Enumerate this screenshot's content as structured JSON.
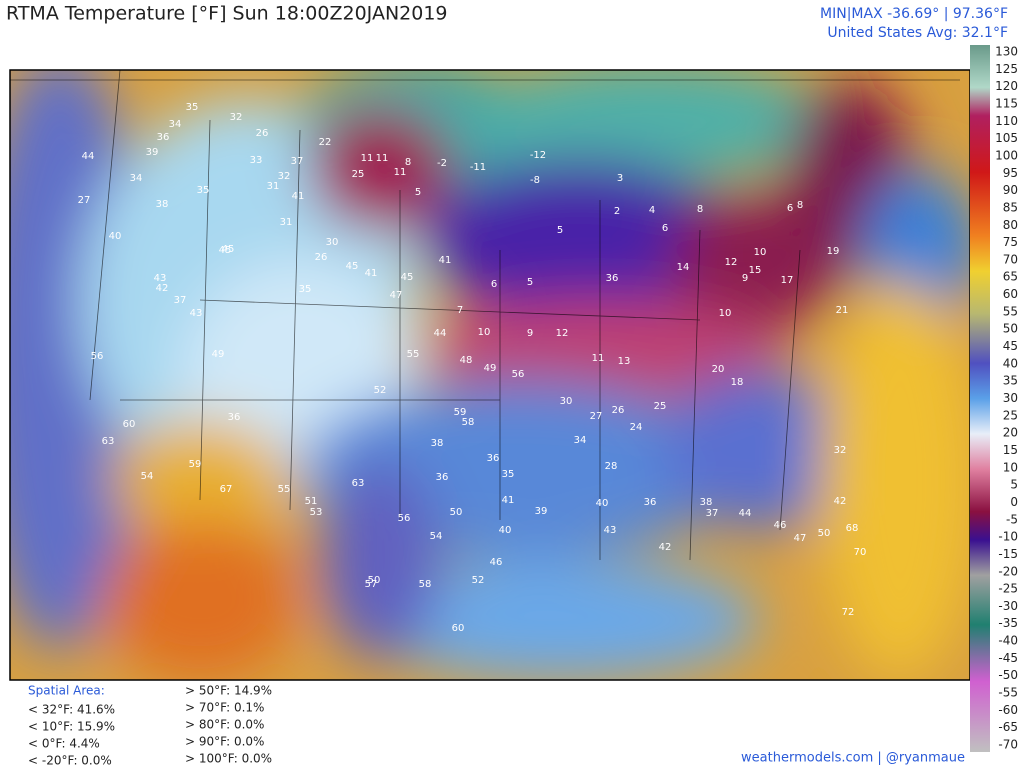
{
  "header": {
    "title": "RTMA Temperature [°F]  Sun 18:00Z20JAN2019",
    "minmax": "MIN|MAX -36.69°  |  97.36°F",
    "avg": "United States Avg: 32.1°F"
  },
  "colorbar": {
    "ticks": [
      130,
      125,
      120,
      115,
      110,
      105,
      100,
      95,
      90,
      85,
      80,
      75,
      70,
      65,
      60,
      55,
      50,
      45,
      40,
      35,
      30,
      25,
      20,
      15,
      10,
      5,
      0,
      -5,
      -10,
      -15,
      -20,
      -25,
      -30,
      -35,
      -40,
      -45,
      -50,
      -55,
      -60,
      -65,
      -70
    ]
  },
  "stats": {
    "heading": "Spatial Area:",
    "left": [
      "< 32°F: 41.6%",
      "< 10°F: 15.9%",
      "< 0°F: 4.4%",
      "< -20°F: 0.0%"
    ],
    "right": [
      "> 50°F: 14.9%",
      "> 70°F: 0.1%",
      "> 80°F: 0.0%",
      "> 90°F: 0.0%",
      "> 100°F: 0.0%"
    ]
  },
  "credit": "weathermodels.com | @ryanmaue",
  "stations": [
    "35",
    "34",
    "36",
    "39",
    "32",
    "26",
    "22",
    "44",
    "27",
    "34",
    "38",
    "40",
    "35",
    "43",
    "37",
    "45",
    "33",
    "31",
    "37",
    "32",
    "25",
    "11",
    "11",
    "11",
    "8",
    "5",
    "-2",
    "-11",
    "-8",
    "-12",
    "3",
    "2",
    "4",
    "6",
    "5",
    "8",
    "6",
    "8",
    "10",
    "9",
    "10",
    "12",
    "14",
    "15",
    "17",
    "19",
    "21",
    "41",
    "45",
    "42",
    "43",
    "49",
    "36",
    "31",
    "30",
    "26",
    "35",
    "45",
    "41",
    "47",
    "44",
    "48",
    "49",
    "55",
    "54",
    "56",
    "60",
    "63",
    "59",
    "67",
    "55",
    "51",
    "53",
    "63",
    "56",
    "54",
    "50",
    "46",
    "52",
    "40",
    "36",
    "38",
    "36",
    "35",
    "41",
    "39",
    "40",
    "43",
    "36",
    "42",
    "38",
    "37",
    "44",
    "46",
    "47",
    "50",
    "42",
    "32",
    "34",
    "28",
    "26",
    "27",
    "30",
    "24",
    "25",
    "20",
    "18",
    "13",
    "11",
    "12",
    "9",
    "10",
    "7",
    "6",
    "5",
    "36",
    "41",
    "45",
    "52",
    "59",
    "58",
    "56",
    "57",
    "50",
    "58",
    "60",
    "68",
    "70",
    "72"
  ]
}
